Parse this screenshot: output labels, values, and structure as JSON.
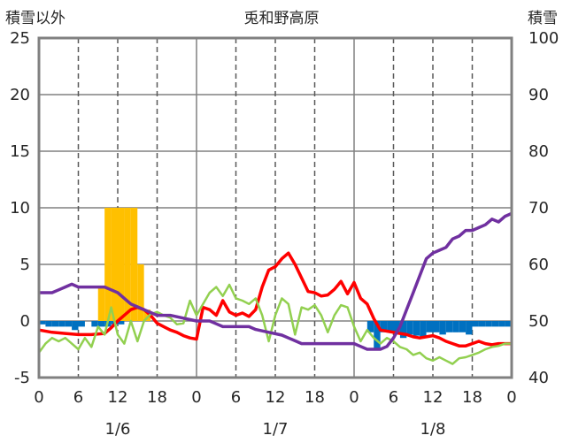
{
  "chart_data": {
    "type": "mixed",
    "title": "兎和野高原",
    "y_left_label": "積雪以外",
    "y_right_label": "積雪",
    "y_left_range": [
      -5,
      25
    ],
    "y_right_range": [
      40,
      100
    ],
    "y_left_ticks": [
      "-5",
      "0",
      "5",
      "10",
      "15",
      "20",
      "25"
    ],
    "y_right_ticks": [
      "40",
      "50",
      "60",
      "70",
      "80",
      "90",
      "100"
    ],
    "x_hour_ticks": [
      "0",
      "6",
      "12",
      "18",
      "0",
      "6",
      "12",
      "18",
      "0",
      "6",
      "12",
      "18",
      "0"
    ],
    "x_date_labels": [
      "1/6",
      "1/7",
      "1/8"
    ],
    "hours_total": 72,
    "series": [
      {
        "kind": "bar",
        "color": "#ffc000",
        "axis": "left",
        "points": [
          [
            9.5,
            3
          ],
          [
            10.5,
            10
          ],
          [
            11.5,
            10
          ],
          [
            12.5,
            10
          ],
          [
            13.5,
            10
          ],
          [
            14.5,
            10
          ],
          [
            15.5,
            5
          ],
          [
            16.5,
            1
          ]
        ]
      },
      {
        "kind": "bar",
        "color": "#0070c0",
        "axis": "left",
        "points": [
          [
            0.5,
            -0.3
          ],
          [
            1.5,
            -0.5
          ],
          [
            2.5,
            -0.5
          ],
          [
            3.5,
            -0.5
          ],
          [
            4.5,
            -0.5
          ],
          [
            5.5,
            -0.8
          ],
          [
            6.5,
            -0.5
          ],
          [
            8.5,
            -0.5
          ],
          [
            9.5,
            -0.5
          ],
          [
            10.5,
            -0.5
          ],
          [
            11.5,
            -0.3
          ],
          [
            12.5,
            -0.3
          ],
          [
            50.5,
            -1
          ],
          [
            51.5,
            -2.5
          ],
          [
            52.5,
            -1
          ],
          [
            53.5,
            -1
          ],
          [
            54.5,
            -1
          ],
          [
            55.5,
            -1.5
          ],
          [
            56.5,
            -1.2
          ],
          [
            57.5,
            -1.3
          ],
          [
            58.5,
            -1.5
          ],
          [
            59.5,
            -1
          ],
          [
            60.5,
            -1
          ],
          [
            61.5,
            -1.2
          ],
          [
            62.5,
            -1
          ],
          [
            63.5,
            -1
          ],
          [
            64.5,
            -1
          ],
          [
            65.5,
            -1.2
          ],
          [
            66.5,
            -0.5
          ],
          [
            67.5,
            -0.5
          ],
          [
            68.5,
            -0.5
          ],
          [
            69.5,
            -0.5
          ],
          [
            70.5,
            -0.5
          ],
          [
            71.5,
            -0.5
          ]
        ]
      },
      {
        "kind": "line",
        "color": "#ff0000",
        "axis": "left",
        "points": [
          [
            0,
            -0.8
          ],
          [
            2,
            -1
          ],
          [
            4,
            -1.1
          ],
          [
            6,
            -1.2
          ],
          [
            8,
            -1.2
          ],
          [
            10,
            -1.1
          ],
          [
            11,
            -0.6
          ],
          [
            12,
            0
          ],
          [
            13,
            0.5
          ],
          [
            14,
            1
          ],
          [
            15,
            1.2
          ],
          [
            16,
            1
          ],
          [
            17,
            0.5
          ],
          [
            18,
            -0.2
          ],
          [
            19,
            -0.5
          ],
          [
            20,
            -0.8
          ],
          [
            21,
            -1
          ],
          [
            22,
            -1.3
          ],
          [
            23,
            -1.5
          ],
          [
            24,
            -1.6
          ],
          [
            25,
            1.2
          ],
          [
            26,
            1
          ],
          [
            27,
            0.5
          ],
          [
            28,
            1.8
          ],
          [
            29,
            0.8
          ],
          [
            30,
            0.5
          ],
          [
            31,
            0.7
          ],
          [
            32,
            0.4
          ],
          [
            33,
            1
          ],
          [
            34,
            3
          ],
          [
            35,
            4.5
          ],
          [
            36,
            4.8
          ],
          [
            37,
            5.5
          ],
          [
            38,
            6
          ],
          [
            39,
            5
          ],
          [
            40,
            3.8
          ],
          [
            41,
            2.6
          ],
          [
            42,
            2.5
          ],
          [
            43,
            2.2
          ],
          [
            44,
            2.3
          ],
          [
            45,
            2.8
          ],
          [
            46,
            3.5
          ],
          [
            47,
            2.4
          ],
          [
            48,
            3.4
          ],
          [
            49,
            2
          ],
          [
            50,
            1.5
          ],
          [
            51,
            0.2
          ],
          [
            52,
            -0.8
          ],
          [
            53,
            -0.9
          ],
          [
            54,
            -1
          ],
          [
            55,
            -1.1
          ],
          [
            56,
            -1.2
          ],
          [
            57,
            -1.4
          ],
          [
            58,
            -1.5
          ],
          [
            59,
            -1.4
          ],
          [
            60,
            -1.3
          ],
          [
            61,
            -1.5
          ],
          [
            62,
            -1.8
          ],
          [
            63,
            -2
          ],
          [
            64,
            -2.2
          ],
          [
            65,
            -2.2
          ],
          [
            66,
            -2
          ],
          [
            67,
            -1.8
          ],
          [
            68,
            -2
          ],
          [
            69,
            -2.1
          ],
          [
            70,
            -2
          ],
          [
            71,
            -2
          ],
          [
            72,
            -2
          ]
        ]
      },
      {
        "kind": "line",
        "color": "#92d050",
        "axis": "left",
        "points": [
          [
            0,
            -2.8
          ],
          [
            1,
            -2
          ],
          [
            2,
            -1.5
          ],
          [
            3,
            -1.8
          ],
          [
            4,
            -1.5
          ],
          [
            5,
            -2
          ],
          [
            6,
            -2.5
          ],
          [
            7,
            -1.5
          ],
          [
            8,
            -2.3
          ],
          [
            9,
            -0.5
          ],
          [
            10,
            -1.2
          ],
          [
            11,
            1.2
          ],
          [
            12,
            -1.2
          ],
          [
            13,
            -2
          ],
          [
            14,
            0
          ],
          [
            15,
            -1.8
          ],
          [
            16,
            0
          ],
          [
            17,
            0.6
          ],
          [
            18,
            0.8
          ],
          [
            19,
            0.5
          ],
          [
            20,
            0.3
          ],
          [
            21,
            -0.3
          ],
          [
            22,
            -0.2
          ],
          [
            23,
            1.8
          ],
          [
            24,
            0.5
          ],
          [
            25,
            1.5
          ],
          [
            26,
            2.5
          ],
          [
            27,
            3
          ],
          [
            28,
            2.2
          ],
          [
            29,
            3.2
          ],
          [
            30,
            2
          ],
          [
            31,
            1.8
          ],
          [
            32,
            1.5
          ],
          [
            33,
            2
          ],
          [
            34,
            0.5
          ],
          [
            35,
            -1.8
          ],
          [
            36,
            0.5
          ],
          [
            37,
            2
          ],
          [
            38,
            1.5
          ],
          [
            39,
            -1.2
          ],
          [
            40,
            1.2
          ],
          [
            41,
            1
          ],
          [
            42,
            1.4
          ],
          [
            43,
            0.5
          ],
          [
            44,
            -1
          ],
          [
            45,
            0.5
          ],
          [
            46,
            1.4
          ],
          [
            47,
            1.2
          ],
          [
            48,
            -0.5
          ],
          [
            49,
            -1.8
          ],
          [
            50,
            -0.8
          ],
          [
            51,
            -1.5
          ],
          [
            52,
            -2
          ],
          [
            53,
            -1.5
          ],
          [
            54,
            -1.8
          ],
          [
            55,
            -2.3
          ],
          [
            56,
            -2.5
          ],
          [
            57,
            -3
          ],
          [
            58,
            -2.8
          ],
          [
            59,
            -3.3
          ],
          [
            60,
            -3.5
          ],
          [
            61,
            -3.2
          ],
          [
            62,
            -3.5
          ],
          [
            63,
            -3.8
          ],
          [
            64,
            -3.3
          ],
          [
            65,
            -3.2
          ],
          [
            66,
            -3
          ],
          [
            67,
            -2.8
          ],
          [
            68,
            -2.5
          ],
          [
            69,
            -2.3
          ],
          [
            70,
            -2.2
          ],
          [
            71,
            -2
          ],
          [
            72,
            -2
          ]
        ]
      },
      {
        "kind": "line",
        "color": "#7030a0",
        "axis": "right",
        "points": [
          [
            0,
            55
          ],
          [
            2,
            55
          ],
          [
            3,
            55.5
          ],
          [
            4,
            56
          ],
          [
            5,
            56.5
          ],
          [
            6,
            56
          ],
          [
            8,
            56
          ],
          [
            10,
            56
          ],
          [
            11,
            55.5
          ],
          [
            12,
            55
          ],
          [
            13,
            54
          ],
          [
            14,
            53
          ],
          [
            15,
            52.5
          ],
          [
            16,
            52
          ],
          [
            17,
            51.5
          ],
          [
            18,
            51
          ],
          [
            20,
            51
          ],
          [
            22,
            50.5
          ],
          [
            24,
            50
          ],
          [
            26,
            50
          ],
          [
            27,
            49.5
          ],
          [
            28,
            49
          ],
          [
            30,
            49
          ],
          [
            32,
            49
          ],
          [
            33,
            48.5
          ],
          [
            35,
            48
          ],
          [
            37,
            47.5
          ],
          [
            38,
            47
          ],
          [
            39,
            46.5
          ],
          [
            40,
            46
          ],
          [
            42,
            46
          ],
          [
            44,
            46
          ],
          [
            46,
            46
          ],
          [
            48,
            46
          ],
          [
            49,
            45.5
          ],
          [
            50,
            45
          ],
          [
            52,
            45
          ],
          [
            53,
            45.5
          ],
          [
            54,
            47
          ],
          [
            55,
            49
          ],
          [
            56,
            52
          ],
          [
            57,
            55
          ],
          [
            58,
            58
          ],
          [
            59,
            61
          ],
          [
            60,
            62
          ],
          [
            61,
            62.5
          ],
          [
            62,
            63
          ],
          [
            63,
            64.5
          ],
          [
            64,
            65
          ],
          [
            65,
            66
          ],
          [
            66,
            66
          ],
          [
            67,
            66.5
          ],
          [
            68,
            67
          ],
          [
            69,
            68
          ],
          [
            70,
            67.5
          ],
          [
            71,
            68.5
          ],
          [
            72,
            69
          ]
        ]
      }
    ]
  }
}
